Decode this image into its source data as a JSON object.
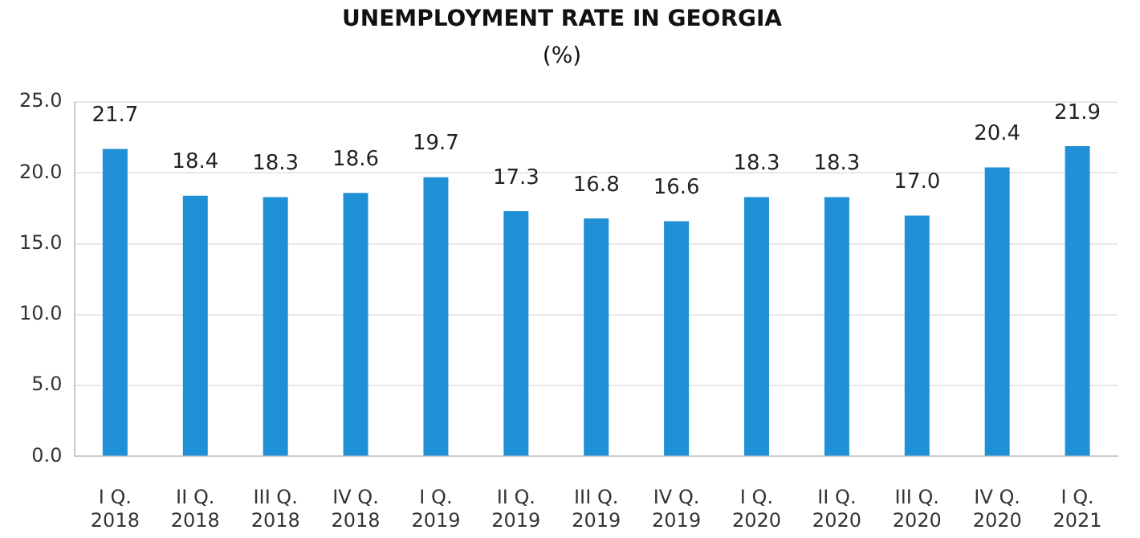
{
  "chart_data": {
    "type": "bar",
    "title": "UNEMPLOYMENT RATE IN GEORGIA",
    "subtitle": "(%)",
    "categories": [
      "I Q. 2018",
      "II Q. 2018",
      "III Q. 2018",
      "IV Q. 2018",
      "I Q. 2019",
      "II Q. 2019",
      "III Q. 2019",
      "IV Q. 2019",
      "I Q. 2020",
      "II Q. 2020",
      "III Q. 2020",
      "IV Q. 2020",
      "I Q. 2021"
    ],
    "values": [
      21.7,
      18.4,
      18.3,
      18.6,
      19.7,
      17.3,
      16.8,
      16.6,
      18.3,
      18.3,
      17.0,
      20.4,
      21.9
    ],
    "value_labels": [
      "21.7",
      "18.4",
      "18.3",
      "18.6",
      "19.7",
      "17.3",
      "16.8",
      "16.6",
      "18.3",
      "18.3",
      "17.0",
      "20.4",
      "21.9"
    ],
    "color": "#1f8fd6",
    "ylim": [
      0,
      25
    ],
    "yticks": [
      {
        "value": 0,
        "label": "0.0"
      },
      {
        "value": 5,
        "label": "5.0"
      },
      {
        "value": 10,
        "label": "10.0"
      },
      {
        "value": 15,
        "label": "15.0"
      },
      {
        "value": 20,
        "label": "20.0"
      },
      {
        "value": 25,
        "label": "25.0"
      }
    ],
    "grid": "y",
    "legend": false
  }
}
